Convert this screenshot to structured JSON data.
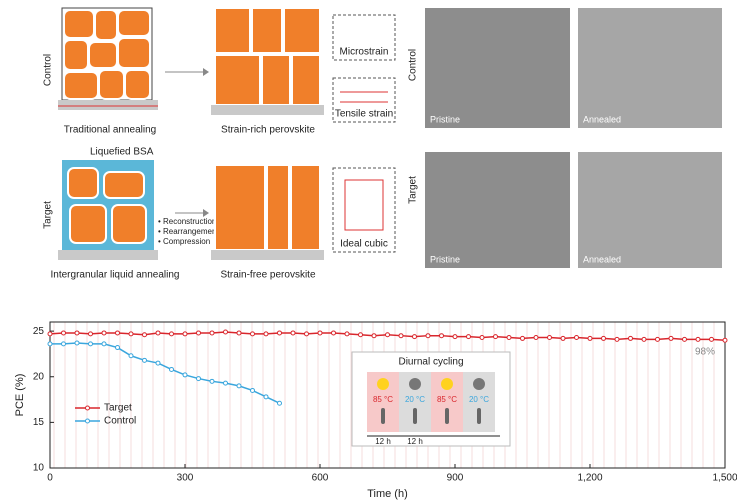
{
  "schematic": {
    "control": {
      "row_label": "Control",
      "left_caption": "Traditional annealing",
      "right_caption": "Strain-rich perovskite",
      "inset_top": "Microstrain",
      "inset_bottom": "Tensile strain"
    },
    "target": {
      "row_label": "Target",
      "liquid_label": "Liquefied BSA",
      "bullets": [
        "• Reconstruction",
        "• Rearrangement",
        "• Compression"
      ],
      "left_caption": "Intergranular liquid annealing",
      "right_caption": "Strain-free perovskite",
      "inset": "Ideal cubic"
    }
  },
  "micrographs": {
    "control": {
      "row_label": "Control",
      "left": "Pristine",
      "right": "Annealed"
    },
    "target": {
      "row_label": "Target",
      "left": "Pristine",
      "right": "Annealed"
    }
  },
  "chart_data": {
    "type": "line",
    "xlabel": "Time (h)",
    "ylabel": "PCE (%)",
    "xlim": [
      0,
      1500
    ],
    "ylim": [
      10,
      26
    ],
    "xticks": [
      0,
      300,
      600,
      900,
      {
        "value": 1200,
        "label": "1,200"
      },
      {
        "value": 1500,
        "label": "1,500"
      }
    ],
    "yticks": [
      10,
      15,
      20,
      25
    ],
    "legend": "lower left",
    "annotation": "98%",
    "inset": {
      "title": "Diurnal cycling",
      "temperatures": [
        "85 °C",
        "20 °C",
        "85 °C",
        "20 °C"
      ],
      "durations": [
        "12 h",
        "12 h"
      ]
    },
    "series": [
      {
        "name": "Target",
        "color": "#d9262c",
        "x": [
          0,
          30,
          60,
          90,
          120,
          150,
          180,
          210,
          240,
          270,
          300,
          330,
          360,
          390,
          420,
          450,
          480,
          510,
          540,
          570,
          600,
          630,
          660,
          690,
          720,
          750,
          780,
          810,
          840,
          870,
          900,
          930,
          960,
          990,
          1020,
          1050,
          1080,
          1110,
          1140,
          1170,
          1200,
          1230,
          1260,
          1290,
          1320,
          1350,
          1380,
          1410,
          1440,
          1470,
          1500
        ],
        "values": [
          24.7,
          24.8,
          24.8,
          24.7,
          24.8,
          24.8,
          24.7,
          24.6,
          24.8,
          24.7,
          24.7,
          24.8,
          24.8,
          24.9,
          24.8,
          24.7,
          24.7,
          24.8,
          24.8,
          24.7,
          24.8,
          24.8,
          24.7,
          24.6,
          24.5,
          24.6,
          24.5,
          24.4,
          24.5,
          24.5,
          24.4,
          24.4,
          24.3,
          24.4,
          24.3,
          24.2,
          24.3,
          24.3,
          24.2,
          24.3,
          24.2,
          24.2,
          24.1,
          24.2,
          24.1,
          24.1,
          24.2,
          24.1,
          24.1,
          24.1,
          24.0
        ]
      },
      {
        "name": "Control",
        "color": "#3aa6dd",
        "x": [
          0,
          30,
          60,
          90,
          120,
          150,
          180,
          210,
          240,
          270,
          300,
          330,
          360,
          390,
          420,
          450,
          480,
          510
        ],
        "values": [
          23.6,
          23.6,
          23.7,
          23.6,
          23.6,
          23.2,
          22.3,
          21.8,
          21.5,
          20.8,
          20.2,
          19.8,
          19.5,
          19.3,
          19.0,
          18.5,
          17.8,
          17.1
        ]
      }
    ]
  }
}
